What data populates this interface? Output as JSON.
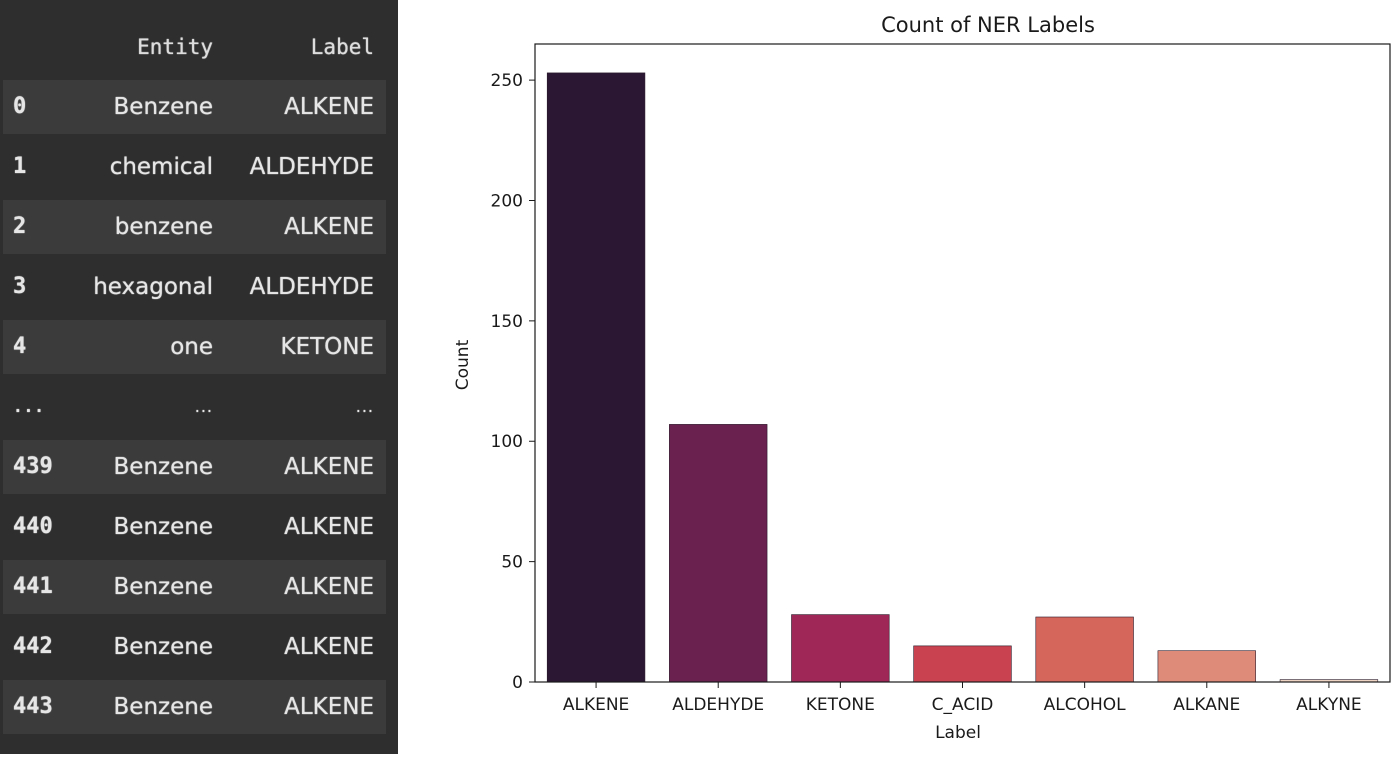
{
  "dataframe": {
    "columns": [
      "Entity",
      "Label"
    ],
    "rows": [
      {
        "index": "0",
        "entity": "Benzene",
        "label": "ALKENE"
      },
      {
        "index": "1",
        "entity": "chemical",
        "label": "ALDEHYDE"
      },
      {
        "index": "2",
        "entity": "benzene",
        "label": "ALKENE"
      },
      {
        "index": "3",
        "entity": "hexagonal",
        "label": "ALDEHYDE"
      },
      {
        "index": "4",
        "entity": "one",
        "label": "KETONE"
      },
      {
        "index": "...",
        "entity": "...",
        "label": "..."
      },
      {
        "index": "439",
        "entity": "Benzene",
        "label": "ALKENE"
      },
      {
        "index": "440",
        "entity": "Benzene",
        "label": "ALKENE"
      },
      {
        "index": "441",
        "entity": "Benzene",
        "label": "ALKENE"
      },
      {
        "index": "442",
        "entity": "Benzene",
        "label": "ALKENE"
      },
      {
        "index": "443",
        "entity": "Benzene",
        "label": "ALKENE"
      }
    ]
  },
  "chart_data": {
    "type": "bar",
    "title": "Count of NER Labels",
    "xlabel": "Label",
    "ylabel": "Count",
    "categories": [
      "ALKENE",
      "ALDEHYDE",
      "KETONE",
      "C_ACID",
      "ALCOHOL",
      "ALKANE",
      "ALKYNE"
    ],
    "values": [
      253,
      107,
      28,
      15,
      27,
      13,
      1
    ],
    "colors": [
      "#2b1734",
      "#6a2150",
      "#9e2758",
      "#c8424f",
      "#d5665c",
      "#df8b7a",
      "#eed4c2"
    ],
    "ylim": [
      0,
      265
    ],
    "yticks": [
      0,
      50,
      100,
      150,
      200,
      250
    ],
    "grid": false
  }
}
